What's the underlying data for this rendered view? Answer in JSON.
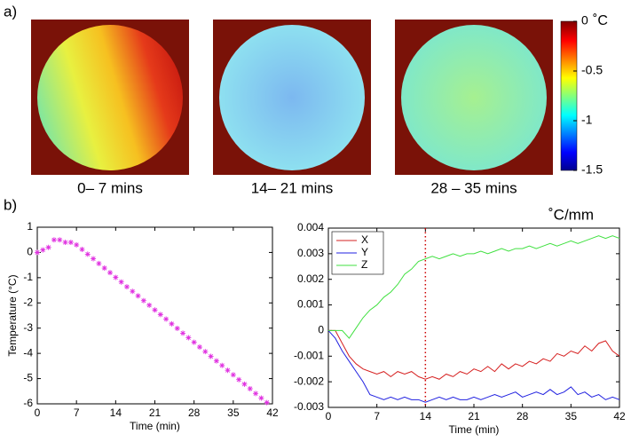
{
  "panel_labels": [
    "a)",
    "b)"
  ],
  "chart_data": [
    {
      "type": "heatmap",
      "captions": [
        "0– 7 mins",
        "14– 21 mins",
        "28 – 35 mins"
      ],
      "colorbar": {
        "clim": [
          -1.5,
          0
        ],
        "cticks": [
          0,
          -0.5,
          -1,
          -1.5
        ],
        "unit": "˚C"
      }
    },
    {
      "type": "scatter",
      "color": "#e030e0",
      "marker": "star",
      "x": [
        0,
        1,
        2,
        3,
        4,
        5,
        6,
        7,
        8,
        9,
        10,
        11,
        12,
        13,
        14,
        15,
        16,
        17,
        18,
        19,
        20,
        21,
        22,
        23,
        24,
        25,
        26,
        27,
        28,
        29,
        30,
        31,
        32,
        33,
        34,
        35,
        36,
        37,
        38,
        39,
        40,
        41
      ],
      "values": [
        0,
        0.1,
        0.2,
        0.5,
        0.5,
        0.4,
        0.4,
        0.3,
        0.12,
        -0.07,
        -0.25,
        -0.44,
        -0.62,
        -0.8,
        -0.99,
        -1.17,
        -1.36,
        -1.54,
        -1.72,
        -1.91,
        -2.09,
        -2.28,
        -2.46,
        -2.64,
        -2.83,
        -3.01,
        -3.2,
        -3.38,
        -3.56,
        -3.75,
        -3.93,
        -4.12,
        -4.3,
        -4.48,
        -4.67,
        -4.85,
        -5.04,
        -5.22,
        -5.4,
        -5.59,
        -5.77,
        -5.95
      ],
      "xlim": [
        0,
        42
      ],
      "xticks": [
        0,
        7,
        14,
        21,
        28,
        35,
        42
      ],
      "ylim": [
        -6,
        1
      ],
      "yticks": [
        1,
        0,
        -1,
        -2,
        -3,
        -4,
        -5,
        -6
      ],
      "xlabel": "Time (min)",
      "ylabel": "Temperature (°C)"
    },
    {
      "type": "line",
      "x": [
        0,
        1,
        2,
        3,
        4,
        5,
        6,
        7,
        8,
        9,
        10,
        11,
        12,
        13,
        14,
        15,
        16,
        17,
        18,
        19,
        20,
        21,
        22,
        23,
        24,
        25,
        26,
        27,
        28,
        29,
        30,
        31,
        32,
        33,
        34,
        35,
        36,
        37,
        38,
        39,
        40,
        41,
        42
      ],
      "series": [
        {
          "name": "X",
          "color": "#d62020",
          "values": [
            0,
            0,
            -0.0005,
            -0.001,
            -0.0013,
            -0.0015,
            -0.0016,
            -0.0017,
            -0.0016,
            -0.0018,
            -0.0016,
            -0.0017,
            -0.0016,
            -0.0018,
            -0.0019,
            -0.0018,
            -0.0019,
            -0.0017,
            -0.0018,
            -0.0016,
            -0.0017,
            -0.0015,
            -0.0016,
            -0.0014,
            -0.0016,
            -0.0013,
            -0.0015,
            -0.0013,
            -0.0014,
            -0.0012,
            -0.0013,
            -0.0011,
            -0.0012,
            -0.0009,
            -0.001,
            -0.0008,
            -0.0009,
            -0.0006,
            -0.0008,
            -0.0005,
            -0.0004,
            -0.0008,
            -0.001
          ]
        },
        {
          "name": "Y",
          "color": "#2020e0",
          "values": [
            0,
            -0.0003,
            -0.0008,
            -0.0012,
            -0.0016,
            -0.002,
            -0.0025,
            -0.0026,
            -0.0027,
            -0.0026,
            -0.0027,
            -0.0026,
            -0.0027,
            -0.0027,
            -0.0028,
            -0.0027,
            -0.0026,
            -0.0027,
            -0.0026,
            -0.0027,
            -0.0027,
            -0.0026,
            -0.0027,
            -0.0026,
            -0.0025,
            -0.0026,
            -0.0025,
            -0.0024,
            -0.0026,
            -0.0025,
            -0.0024,
            -0.0025,
            -0.0023,
            -0.0025,
            -0.0024,
            -0.0022,
            -0.0025,
            -0.0024,
            -0.0026,
            -0.0025,
            -0.0027,
            -0.0026,
            -0.0027
          ]
        },
        {
          "name": "Z",
          "color": "#40e040",
          "values": [
            0,
            0,
            0,
            -0.0003,
            0.0001,
            0.0005,
            0.0008,
            0.001,
            0.0013,
            0.0015,
            0.0018,
            0.0022,
            0.0024,
            0.0027,
            0.0028,
            0.0029,
            0.0028,
            0.0029,
            0.003,
            0.0029,
            0.003,
            0.003,
            0.0031,
            0.003,
            0.0031,
            0.0032,
            0.0031,
            0.0032,
            0.0032,
            0.0033,
            0.0032,
            0.0033,
            0.0034,
            0.0033,
            0.0034,
            0.0035,
            0.0034,
            0.0035,
            0.0036,
            0.0037,
            0.0036,
            0.0037,
            0.0036
          ]
        }
      ],
      "xlim": [
        0,
        42
      ],
      "xticks": [
        0,
        7,
        14,
        21,
        28,
        35,
        42
      ],
      "ylim": [
        -0.003,
        0.004
      ],
      "yticks": [
        0.004,
        0.003,
        0.002,
        0.001,
        0,
        -0.001,
        -0.002,
        -0.003
      ],
      "xlabel": "Time (min)",
      "unit": "˚C/mm",
      "vline": {
        "x": 14,
        "color": "#cc0000",
        "style": "dotted"
      },
      "legend": "upper left"
    }
  ]
}
